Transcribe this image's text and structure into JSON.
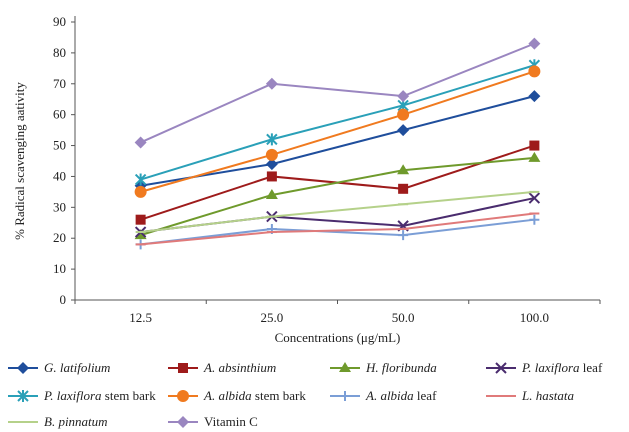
{
  "chart_data": {
    "type": "line",
    "categories": [
      "12.5",
      "25.0",
      "50.0",
      "100.0"
    ],
    "ylim": [
      0,
      90
    ],
    "yticks": [
      0,
      10,
      20,
      30,
      40,
      50,
      60,
      70,
      80,
      90
    ],
    "xlabel": "Concentrations (μg/mL)",
    "ylabel": "% Radical scavenging aativity",
    "grid": false,
    "legend_position": "bottom",
    "series": [
      {
        "name": "G. latifolium",
        "italic_part": "G. latifolium",
        "plain_part": "",
        "color": "#1f4e9c",
        "marker": "diamond",
        "values": [
          37,
          44,
          55,
          66
        ]
      },
      {
        "name": "A. absinthium",
        "italic_part": "A. absinthium",
        "plain_part": "",
        "color": "#9e1b1b",
        "marker": "square",
        "values": [
          26,
          40,
          36,
          50
        ]
      },
      {
        "name": "H. floribunda",
        "italic_part": "H. floribunda",
        "plain_part": "",
        "color": "#6f9a2c",
        "marker": "triangle",
        "values": [
          21,
          34,
          42,
          46
        ]
      },
      {
        "name": "P. laxiflora leaf",
        "italic_part": "P. laxiflora",
        "plain_part": " leaf",
        "color": "#4a2c6e",
        "marker": "x",
        "values": [
          22,
          27,
          24,
          33
        ]
      },
      {
        "name": "P. laxiflora stem bark",
        "italic_part": "P. laxiflora",
        "plain_part": " stem bark",
        "color": "#2aa0b8",
        "marker": "star",
        "values": [
          39,
          52,
          63,
          76
        ]
      },
      {
        "name": "A. albida stem bark",
        "italic_part": "A. albida",
        "plain_part": " stem bark",
        "color": "#f07a1f",
        "marker": "circle",
        "values": [
          35,
          47,
          60,
          74
        ]
      },
      {
        "name": "A. albida leaf",
        "italic_part": "A. albida",
        "plain_part": " leaf",
        "color": "#7b9ed6",
        "marker": "plus",
        "values": [
          18,
          23,
          21,
          26
        ]
      },
      {
        "name": "L. hastata",
        "italic_part": "L. hastata",
        "plain_part": "",
        "color": "#e07a7a",
        "marker": "dash",
        "values": [
          18,
          22,
          23,
          28
        ]
      },
      {
        "name": "B. pinnatum",
        "italic_part": "B. pinnatum",
        "plain_part": "",
        "color": "#b5d18a",
        "marker": "dash",
        "values": [
          22,
          27,
          31,
          35
        ]
      },
      {
        "name": "Vitamin C",
        "italic_part": "",
        "plain_part": "Vitamin C",
        "color": "#9a86c0",
        "marker": "diamond",
        "values": [
          51,
          70,
          66,
          83
        ]
      }
    ]
  }
}
